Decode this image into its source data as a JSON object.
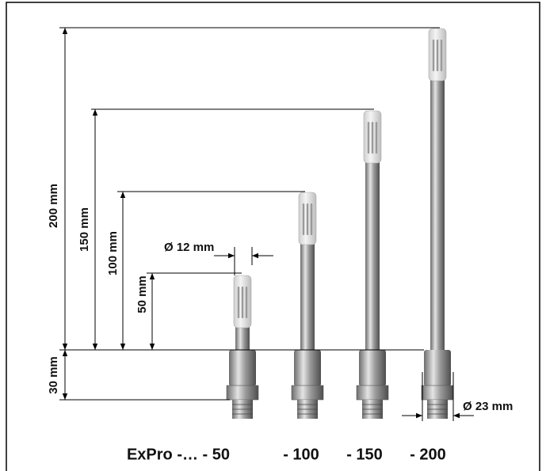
{
  "dimensions": {
    "height_200": "200 mm",
    "height_150": "150 mm",
    "height_100": "100 mm",
    "height_50": "50 mm",
    "height_30": "30 mm",
    "diameter_12": "Ø 12 mm",
    "diameter_23": "Ø 23 mm"
  },
  "models": [
    "ExPro -… - 50",
    "- 100",
    "- 150",
    "- 200"
  ]
}
